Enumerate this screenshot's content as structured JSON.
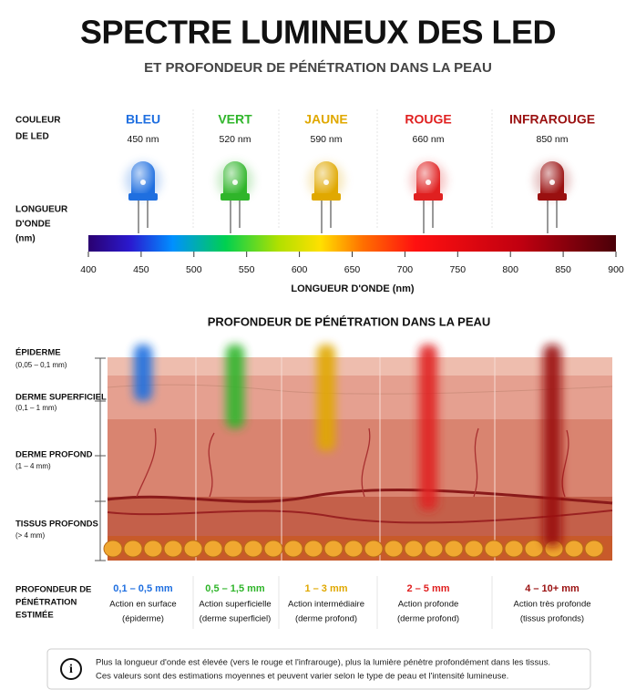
{
  "header": {
    "title": "SPECTRE LUMINEUX DES LED",
    "subtitle": "ET PROFONDEUR DE PÉNÉTRATION DANS LA PEAU"
  },
  "led_row_label": [
    "COULEUR",
    "DE LED"
  ],
  "leds": [
    {
      "name": "BLEU",
      "wavelength": "450 nm",
      "color": "#1f6fe0"
    },
    {
      "name": "VERT",
      "wavelength": "520 nm",
      "color": "#2fb52a"
    },
    {
      "name": "JAUNE",
      "wavelength": "590 nm",
      "color": "#e0a800"
    },
    {
      "name": "ROUGE",
      "wavelength": "660 nm",
      "color": "#e02020"
    },
    {
      "name": "INFRAROUGE",
      "wavelength": "850 nm",
      "color": "#9a1010"
    }
  ],
  "wavelength_label": [
    "LONGUEUR",
    "D'ONDE",
    "(nm)"
  ],
  "spectrum": {
    "ticks": [
      400,
      450,
      500,
      550,
      600,
      650,
      700,
      750,
      800,
      850,
      900
    ],
    "axis_label": "LONGUEUR D'ONDE (nm)"
  },
  "section_title": "PROFONDEUR DE PÉNÉTRATION DANS LA PEAU",
  "layers": [
    {
      "name": "ÉPIDERME",
      "range": "(0,05 – 0,1 mm)"
    },
    {
      "name": "DERME SUPERFICIEL",
      "range": "(0,1 – 1 mm)"
    },
    {
      "name": "DERME PROFOND",
      "range": "(1 – 4 mm)"
    },
    {
      "name": "TISSUS PROFONDS",
      "range": "(> 4 mm)"
    }
  ],
  "depth_row_label": [
    "PROFONDEUR DE",
    "PÉNÉTRATION",
    "ESTIMÉE"
  ],
  "depths": [
    {
      "value": "0,1 – 0,5 mm",
      "action": "Action en surface",
      "zone": "(épiderme)"
    },
    {
      "value": "0,5 – 1,5 mm",
      "action": "Action superficielle",
      "zone": "(derme superficiel)"
    },
    {
      "value": "1 – 3 mm",
      "action": "Action intermédiaire",
      "zone": "(derme profond)"
    },
    {
      "value": "2 – 5 mm",
      "action": "Action profonde",
      "zone": "(derme profond)"
    },
    {
      "value": "4 – 10+ mm",
      "action": "Action très profonde",
      "zone": "(tissus profonds)"
    }
  ],
  "note": [
    "Plus la longueur d'onde est élevée (vers le rouge et l'infrarouge), plus la lumière pénètre profondément dans les tissus.",
    "Ces valeurs sont des estimations moyennes et peuvent varier selon le type de peau et l'intensité lumineuse."
  ]
}
